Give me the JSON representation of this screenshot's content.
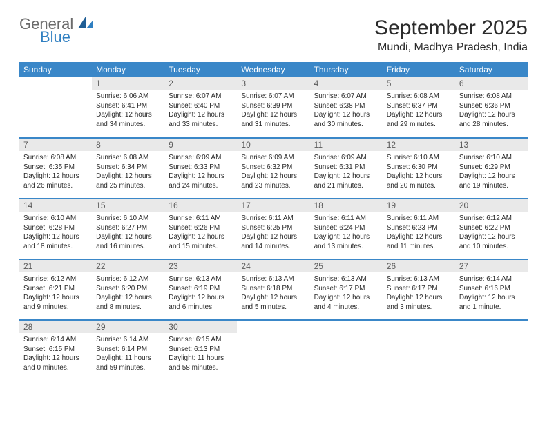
{
  "logo": {
    "general": "General",
    "blue": "Blue"
  },
  "header": {
    "month_title": "September 2025",
    "location": "Mundi, Madhya Pradesh, India"
  },
  "colors": {
    "header_bg": "#3a87c8",
    "header_text": "#ffffff",
    "daynum_bg": "#e9e9e9",
    "daynum_text": "#5a5a5a",
    "row_border": "#3a87c8",
    "logo_general": "#6b6b6b",
    "logo_blue": "#2f7fc1"
  },
  "weekdays": [
    "Sunday",
    "Monday",
    "Tuesday",
    "Wednesday",
    "Thursday",
    "Friday",
    "Saturday"
  ],
  "weeks": [
    [
      null,
      {
        "n": "1",
        "sr": "Sunrise: 6:06 AM",
        "ss": "Sunset: 6:41 PM",
        "dl1": "Daylight: 12 hours",
        "dl2": "and 34 minutes."
      },
      {
        "n": "2",
        "sr": "Sunrise: 6:07 AM",
        "ss": "Sunset: 6:40 PM",
        "dl1": "Daylight: 12 hours",
        "dl2": "and 33 minutes."
      },
      {
        "n": "3",
        "sr": "Sunrise: 6:07 AM",
        "ss": "Sunset: 6:39 PM",
        "dl1": "Daylight: 12 hours",
        "dl2": "and 31 minutes."
      },
      {
        "n": "4",
        "sr": "Sunrise: 6:07 AM",
        "ss": "Sunset: 6:38 PM",
        "dl1": "Daylight: 12 hours",
        "dl2": "and 30 minutes."
      },
      {
        "n": "5",
        "sr": "Sunrise: 6:08 AM",
        "ss": "Sunset: 6:37 PM",
        "dl1": "Daylight: 12 hours",
        "dl2": "and 29 minutes."
      },
      {
        "n": "6",
        "sr": "Sunrise: 6:08 AM",
        "ss": "Sunset: 6:36 PM",
        "dl1": "Daylight: 12 hours",
        "dl2": "and 28 minutes."
      }
    ],
    [
      {
        "n": "7",
        "sr": "Sunrise: 6:08 AM",
        "ss": "Sunset: 6:35 PM",
        "dl1": "Daylight: 12 hours",
        "dl2": "and 26 minutes."
      },
      {
        "n": "8",
        "sr": "Sunrise: 6:08 AM",
        "ss": "Sunset: 6:34 PM",
        "dl1": "Daylight: 12 hours",
        "dl2": "and 25 minutes."
      },
      {
        "n": "9",
        "sr": "Sunrise: 6:09 AM",
        "ss": "Sunset: 6:33 PM",
        "dl1": "Daylight: 12 hours",
        "dl2": "and 24 minutes."
      },
      {
        "n": "10",
        "sr": "Sunrise: 6:09 AM",
        "ss": "Sunset: 6:32 PM",
        "dl1": "Daylight: 12 hours",
        "dl2": "and 23 minutes."
      },
      {
        "n": "11",
        "sr": "Sunrise: 6:09 AM",
        "ss": "Sunset: 6:31 PM",
        "dl1": "Daylight: 12 hours",
        "dl2": "and 21 minutes."
      },
      {
        "n": "12",
        "sr": "Sunrise: 6:10 AM",
        "ss": "Sunset: 6:30 PM",
        "dl1": "Daylight: 12 hours",
        "dl2": "and 20 minutes."
      },
      {
        "n": "13",
        "sr": "Sunrise: 6:10 AM",
        "ss": "Sunset: 6:29 PM",
        "dl1": "Daylight: 12 hours",
        "dl2": "and 19 minutes."
      }
    ],
    [
      {
        "n": "14",
        "sr": "Sunrise: 6:10 AM",
        "ss": "Sunset: 6:28 PM",
        "dl1": "Daylight: 12 hours",
        "dl2": "and 18 minutes."
      },
      {
        "n": "15",
        "sr": "Sunrise: 6:10 AM",
        "ss": "Sunset: 6:27 PM",
        "dl1": "Daylight: 12 hours",
        "dl2": "and 16 minutes."
      },
      {
        "n": "16",
        "sr": "Sunrise: 6:11 AM",
        "ss": "Sunset: 6:26 PM",
        "dl1": "Daylight: 12 hours",
        "dl2": "and 15 minutes."
      },
      {
        "n": "17",
        "sr": "Sunrise: 6:11 AM",
        "ss": "Sunset: 6:25 PM",
        "dl1": "Daylight: 12 hours",
        "dl2": "and 14 minutes."
      },
      {
        "n": "18",
        "sr": "Sunrise: 6:11 AM",
        "ss": "Sunset: 6:24 PM",
        "dl1": "Daylight: 12 hours",
        "dl2": "and 13 minutes."
      },
      {
        "n": "19",
        "sr": "Sunrise: 6:11 AM",
        "ss": "Sunset: 6:23 PM",
        "dl1": "Daylight: 12 hours",
        "dl2": "and 11 minutes."
      },
      {
        "n": "20",
        "sr": "Sunrise: 6:12 AM",
        "ss": "Sunset: 6:22 PM",
        "dl1": "Daylight: 12 hours",
        "dl2": "and 10 minutes."
      }
    ],
    [
      {
        "n": "21",
        "sr": "Sunrise: 6:12 AM",
        "ss": "Sunset: 6:21 PM",
        "dl1": "Daylight: 12 hours",
        "dl2": "and 9 minutes."
      },
      {
        "n": "22",
        "sr": "Sunrise: 6:12 AM",
        "ss": "Sunset: 6:20 PM",
        "dl1": "Daylight: 12 hours",
        "dl2": "and 8 minutes."
      },
      {
        "n": "23",
        "sr": "Sunrise: 6:13 AM",
        "ss": "Sunset: 6:19 PM",
        "dl1": "Daylight: 12 hours",
        "dl2": "and 6 minutes."
      },
      {
        "n": "24",
        "sr": "Sunrise: 6:13 AM",
        "ss": "Sunset: 6:18 PM",
        "dl1": "Daylight: 12 hours",
        "dl2": "and 5 minutes."
      },
      {
        "n": "25",
        "sr": "Sunrise: 6:13 AM",
        "ss": "Sunset: 6:17 PM",
        "dl1": "Daylight: 12 hours",
        "dl2": "and 4 minutes."
      },
      {
        "n": "26",
        "sr": "Sunrise: 6:13 AM",
        "ss": "Sunset: 6:17 PM",
        "dl1": "Daylight: 12 hours",
        "dl2": "and 3 minutes."
      },
      {
        "n": "27",
        "sr": "Sunrise: 6:14 AM",
        "ss": "Sunset: 6:16 PM",
        "dl1": "Daylight: 12 hours",
        "dl2": "and 1 minute."
      }
    ],
    [
      {
        "n": "28",
        "sr": "Sunrise: 6:14 AM",
        "ss": "Sunset: 6:15 PM",
        "dl1": "Daylight: 12 hours",
        "dl2": "and 0 minutes."
      },
      {
        "n": "29",
        "sr": "Sunrise: 6:14 AM",
        "ss": "Sunset: 6:14 PM",
        "dl1": "Daylight: 11 hours",
        "dl2": "and 59 minutes."
      },
      {
        "n": "30",
        "sr": "Sunrise: 6:15 AM",
        "ss": "Sunset: 6:13 PM",
        "dl1": "Daylight: 11 hours",
        "dl2": "and 58 minutes."
      },
      null,
      null,
      null,
      null
    ]
  ]
}
